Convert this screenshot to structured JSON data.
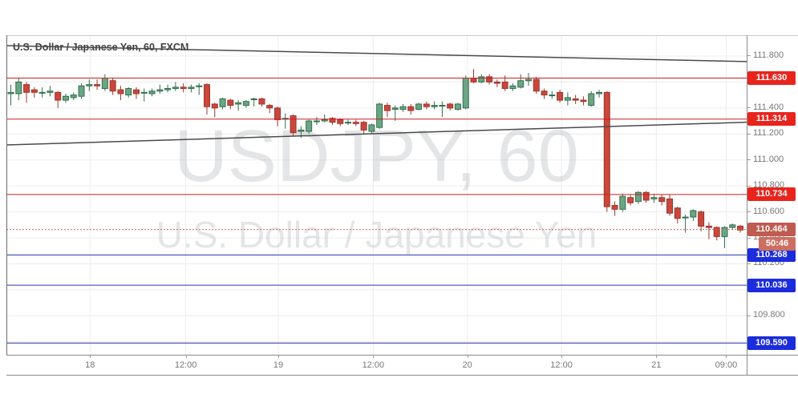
{
  "header": {
    "title": "U.S. Dollar / Japanese Yen, 60, FXCM"
  },
  "watermark": {
    "line1": "USDJPY, 60",
    "line2": "U.S. Dollar / Japanese Yen"
  },
  "colors": {
    "up_fill": "#6ba583",
    "up_border": "#336e4d",
    "down_fill": "#c9473c",
    "down_border": "#9c352c",
    "grid": "#ececec",
    "resistance_line": "#cc1f1f",
    "resistance_badge": "#e8251d",
    "support_line": "#2a35ad",
    "support_badge": "#1b2cdc",
    "last_price_line": "#cf6a5c",
    "last_price_badge": "#c05b50",
    "countdown_badge": "#cc6f63",
    "trendline": "#4a4a4a",
    "axis_text": "#767676",
    "watermark_text": "#9aa0a6"
  },
  "chart_data": {
    "type": "candlestick",
    "title": "U.S. Dollar / Japanese Yen",
    "symbol": "USDJPY",
    "interval": "60",
    "exchange": "FXCM",
    "y_axis": {
      "max": 111.96,
      "min": 109.5,
      "grid_step": 0.2,
      "tick_labels": [
        "111.800",
        "111.600",
        "111.400",
        "111.200",
        "111.000",
        "110.800",
        "110.600",
        "110.400",
        "110.200",
        "110.000",
        "109.800",
        "109.600"
      ],
      "tick_prices": [
        111.8,
        111.6,
        111.4,
        111.2,
        111.0,
        110.8,
        110.6,
        110.4,
        110.2,
        110.0,
        109.8,
        109.6
      ]
    },
    "x_axis": {
      "ticks": [
        {
          "label": "18",
          "i": 10.1
        },
        {
          "label": "12:00",
          "i": 22.3
        },
        {
          "label": "19",
          "i": 34.1
        },
        {
          "label": "12:00",
          "i": 46.2
        },
        {
          "label": "20",
          "i": 58.2
        },
        {
          "label": "12:00",
          "i": 70.2
        },
        {
          "label": "21",
          "i": 82.3
        },
        {
          "label": "09:00",
          "i": 91.2
        }
      ]
    },
    "levels": [
      {
        "price": 111.63,
        "label": "111.630",
        "type": "resistance"
      },
      {
        "price": 111.314,
        "label": "111.314",
        "type": "resistance"
      },
      {
        "price": 110.734,
        "label": "110.734",
        "type": "resistance"
      },
      {
        "price": 110.268,
        "label": "110.268",
        "type": "support"
      },
      {
        "price": 110.036,
        "label": "110.036",
        "type": "support"
      },
      {
        "price": 109.59,
        "label": "109.590",
        "type": "support"
      }
    ],
    "last_price": {
      "value": 110.464,
      "label": "110.464",
      "countdown": "50:46"
    },
    "trendlines": [
      {
        "name": "descending-trendline",
        "from_price": 111.88,
        "to_price": 111.757
      },
      {
        "name": "ascending-trendline",
        "from_price": 111.115,
        "to_price": 111.29
      }
    ],
    "candles": [
      [
        111.51,
        111.58,
        111.42,
        111.52
      ],
      [
        111.51,
        111.63,
        111.46,
        111.6
      ],
      [
        111.58,
        111.6,
        111.44,
        111.52
      ],
      [
        111.54,
        111.56,
        111.48,
        111.52
      ],
      [
        111.52,
        111.56,
        111.48,
        111.52
      ],
      [
        111.52,
        111.57,
        111.49,
        111.53
      ],
      [
        111.52,
        111.53,
        111.4,
        111.46
      ],
      [
        111.46,
        111.51,
        111.44,
        111.49
      ],
      [
        111.48,
        111.52,
        111.46,
        111.5
      ],
      [
        111.49,
        111.59,
        111.47,
        111.57
      ],
      [
        111.57,
        111.62,
        111.53,
        111.58
      ],
      [
        111.58,
        111.62,
        111.54,
        111.57
      ],
      [
        111.55,
        111.66,
        111.53,
        111.63
      ],
      [
        111.61,
        111.63,
        111.5,
        111.53
      ],
      [
        111.54,
        111.57,
        111.46,
        111.51
      ],
      [
        111.5,
        111.56,
        111.48,
        111.55
      ],
      [
        111.54,
        111.56,
        111.47,
        111.51
      ],
      [
        111.52,
        111.55,
        111.45,
        111.52
      ],
      [
        111.51,
        111.55,
        111.49,
        111.53
      ],
      [
        111.53,
        111.58,
        111.51,
        111.54
      ],
      [
        111.54,
        111.58,
        111.52,
        111.55
      ],
      [
        111.55,
        111.6,
        111.53,
        111.56
      ],
      [
        111.56,
        111.59,
        111.52,
        111.55
      ],
      [
        111.55,
        111.58,
        111.52,
        111.56
      ],
      [
        111.57,
        111.59,
        111.5,
        111.57
      ],
      [
        111.58,
        111.59,
        111.35,
        111.41
      ],
      [
        111.43,
        111.44,
        111.33,
        111.4
      ],
      [
        111.41,
        111.48,
        111.39,
        111.47
      ],
      [
        111.46,
        111.47,
        111.39,
        111.42
      ],
      [
        111.43,
        111.46,
        111.38,
        111.44
      ],
      [
        111.42,
        111.46,
        111.4,
        111.45
      ],
      [
        111.47,
        111.48,
        111.41,
        111.47
      ],
      [
        111.47,
        111.48,
        111.41,
        111.43
      ],
      [
        111.42,
        111.43,
        111.36,
        111.4
      ],
      [
        111.4,
        111.41,
        111.26,
        111.31
      ],
      [
        111.32,
        111.36,
        111.24,
        111.32
      ],
      [
        111.34,
        111.35,
        111.18,
        111.21
      ],
      [
        111.22,
        111.26,
        111.17,
        111.23
      ],
      [
        111.22,
        111.31,
        111.2,
        111.3
      ],
      [
        111.3,
        111.33,
        111.27,
        111.3
      ],
      [
        111.3,
        111.35,
        111.29,
        111.31
      ],
      [
        111.32,
        111.33,
        111.27,
        111.29
      ],
      [
        111.31,
        111.32,
        111.26,
        111.28
      ],
      [
        111.29,
        111.31,
        111.27,
        111.29
      ],
      [
        111.29,
        111.31,
        111.26,
        111.28
      ],
      [
        111.29,
        111.3,
        111.2,
        111.23
      ],
      [
        111.22,
        111.28,
        111.2,
        111.27
      ],
      [
        111.25,
        111.44,
        111.24,
        111.43
      ],
      [
        111.42,
        111.44,
        111.33,
        111.38
      ],
      [
        111.39,
        111.42,
        111.3,
        111.4
      ],
      [
        111.39,
        111.43,
        111.37,
        111.41
      ],
      [
        111.41,
        111.43,
        111.35,
        111.38
      ],
      [
        111.39,
        111.44,
        111.38,
        111.43
      ],
      [
        111.43,
        111.45,
        111.39,
        111.41
      ],
      [
        111.41,
        111.45,
        111.39,
        111.42
      ],
      [
        111.42,
        111.45,
        111.33,
        111.42
      ],
      [
        111.43,
        111.44,
        111.38,
        111.4
      ],
      [
        111.39,
        111.44,
        111.38,
        111.43
      ],
      [
        111.4,
        111.65,
        111.39,
        111.63
      ],
      [
        111.63,
        111.7,
        111.59,
        111.6
      ],
      [
        111.6,
        111.66,
        111.59,
        111.64
      ],
      [
        111.64,
        111.66,
        111.58,
        111.6
      ],
      [
        111.6,
        111.62,
        111.56,
        111.59
      ],
      [
        111.6,
        111.65,
        111.53,
        111.55
      ],
      [
        111.55,
        111.59,
        111.53,
        111.57
      ],
      [
        111.56,
        111.66,
        111.55,
        111.61
      ],
      [
        111.61,
        111.67,
        111.57,
        111.62
      ],
      [
        111.62,
        111.64,
        111.51,
        111.53
      ],
      [
        111.53,
        111.55,
        111.47,
        111.5
      ],
      [
        111.5,
        111.53,
        111.47,
        111.5
      ],
      [
        111.52,
        111.54,
        111.44,
        111.46
      ],
      [
        111.46,
        111.52,
        111.42,
        111.48
      ],
      [
        111.47,
        111.5,
        111.43,
        111.46
      ],
      [
        111.46,
        111.49,
        111.42,
        111.45
      ],
      [
        111.42,
        111.53,
        111.41,
        111.51
      ],
      [
        111.51,
        111.54,
        111.48,
        111.52
      ],
      [
        111.52,
        111.53,
        110.6,
        110.64
      ],
      [
        110.65,
        110.68,
        110.57,
        110.62
      ],
      [
        110.62,
        110.74,
        110.6,
        110.72
      ],
      [
        110.71,
        110.73,
        110.65,
        110.67
      ],
      [
        110.68,
        110.76,
        110.66,
        110.75
      ],
      [
        110.75,
        110.76,
        110.67,
        110.69
      ],
      [
        110.7,
        110.74,
        110.67,
        110.71
      ],
      [
        110.71,
        110.73,
        110.65,
        110.68
      ],
      [
        110.7,
        110.73,
        110.57,
        110.59
      ],
      [
        110.63,
        110.64,
        110.51,
        110.55
      ],
      [
        110.56,
        110.58,
        110.44,
        110.56
      ],
      [
        110.56,
        110.62,
        110.53,
        110.61
      ],
      [
        110.6,
        110.61,
        110.45,
        110.49
      ],
      [
        110.49,
        110.52,
        110.39,
        110.48
      ],
      [
        110.48,
        110.49,
        110.38,
        110.41
      ],
      [
        110.41,
        110.49,
        110.32,
        110.48
      ],
      [
        110.48,
        110.51,
        110.46,
        110.5
      ],
      [
        110.49,
        110.5,
        110.44,
        110.46
      ]
    ]
  }
}
